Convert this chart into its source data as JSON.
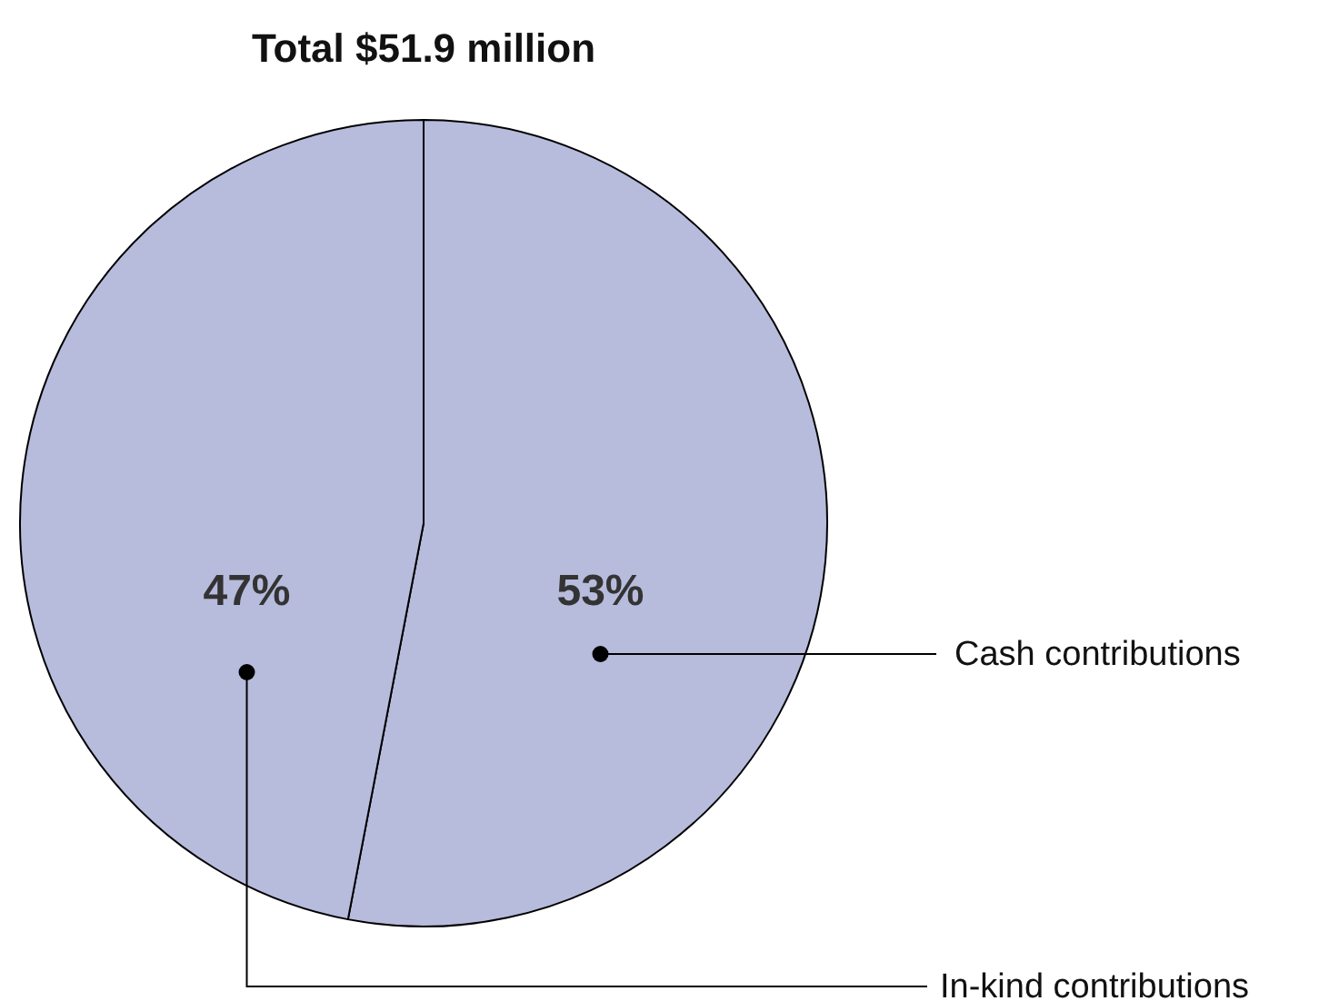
{
  "chart_data": {
    "type": "pie",
    "title": "Total $51.9 million",
    "categories": [
      "Cash contributions",
      "In-kind contributions"
    ],
    "values": [
      53,
      47
    ],
    "colors": [
      "#b7bbdc",
      "#b7bbdc"
    ],
    "value_labels": [
      "53%",
      "47%"
    ]
  }
}
